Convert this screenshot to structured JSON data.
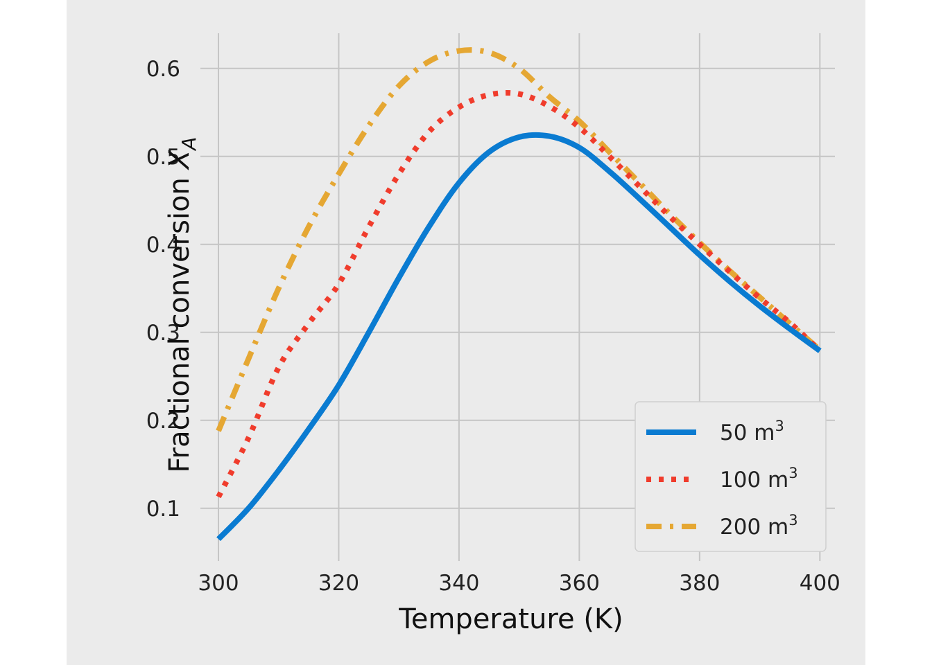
{
  "chart_data": {
    "type": "line",
    "title": "",
    "xlabel": "Temperature (K)",
    "ylabel": "Fractional conversion",
    "ylabel_symbol": "X",
    "ylabel_subscript": "A",
    "xlim": [
      297,
      402.5
    ],
    "ylim": [
      0.04,
      0.64
    ],
    "xticks": [
      300,
      320,
      340,
      360,
      380,
      400
    ],
    "yticks": [
      0.1,
      0.2,
      0.3,
      0.4,
      0.5,
      0.6
    ],
    "xtick_labels": [
      "300",
      "320",
      "340",
      "360",
      "380",
      "400"
    ],
    "ytick_labels": [
      "0.1",
      "0.2",
      "0.3",
      "0.4",
      "0.5",
      "0.6"
    ],
    "grid": true,
    "legend_position": "lower-right",
    "x": [
      300,
      305,
      310,
      315,
      320,
      325,
      330,
      335,
      340,
      345,
      350,
      355,
      360,
      365,
      370,
      375,
      380,
      385,
      390,
      395,
      400
    ],
    "series": [
      {
        "name": "50 m",
        "superscript": "3",
        "style": "solid",
        "color": "#0a7bd1",
        "values": [
          0.065,
          0.1,
          0.143,
          0.19,
          0.24,
          0.3,
          0.362,
          0.42,
          0.47,
          0.505,
          0.522,
          0.523,
          0.51,
          0.483,
          0.452,
          0.42,
          0.388,
          0.358,
          0.33,
          0.304,
          0.279
        ]
      },
      {
        "name": "100 m",
        "superscript": "3",
        "style": "dotted",
        "color": "#f03c2c",
        "values": [
          0.113,
          0.18,
          0.26,
          0.31,
          0.355,
          0.42,
          0.48,
          0.528,
          0.556,
          0.57,
          0.571,
          0.557,
          0.533,
          0.5,
          0.466,
          0.432,
          0.4,
          0.369,
          0.339,
          0.311,
          0.279
        ]
      },
      {
        "name": "200 m",
        "superscript": "3",
        "style": "dashdot",
        "color": "#e5a733",
        "values": [
          0.188,
          0.27,
          0.35,
          0.42,
          0.48,
          0.535,
          0.58,
          0.608,
          0.62,
          0.618,
          0.6,
          0.568,
          0.54,
          0.505,
          0.47,
          0.435,
          0.402,
          0.37,
          0.34,
          0.31,
          0.28
        ]
      }
    ]
  }
}
